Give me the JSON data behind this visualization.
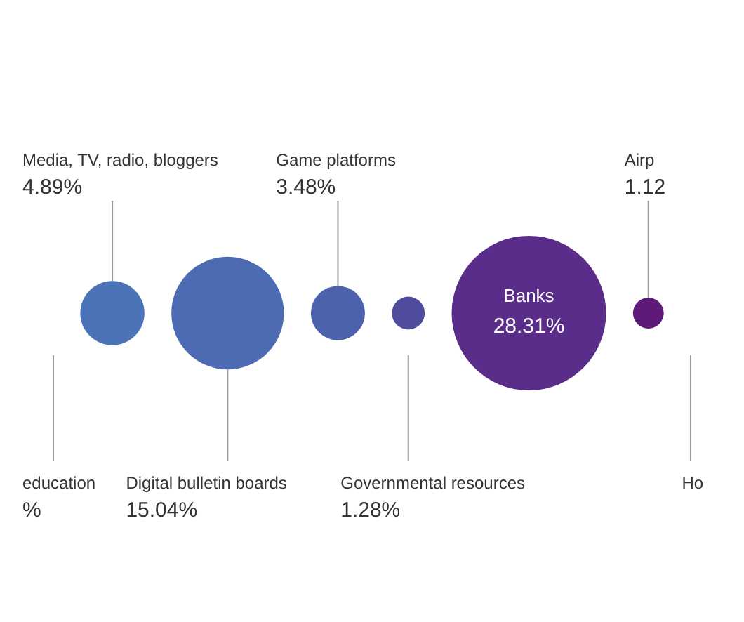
{
  "chart_data": {
    "type": "other",
    "categories": [
      "education",
      "Media, TV, radio, bloggers",
      "Digital bulletin boards",
      "Game platforms",
      "Governmental resources",
      "Banks",
      "Airp",
      "Ho"
    ],
    "values": [
      null,
      4.89,
      15.04,
      3.48,
      1.28,
      28.31,
      1.12,
      null
    ],
    "value_labels": [
      "%",
      "4.89%",
      "15.04%",
      "3.48%",
      "1.28%",
      "28.31%",
      "1.12",
      null
    ],
    "colors": [
      "#4d7dbf",
      "#4a74b7",
      "#4c6bb2",
      "#4d62ac",
      "#4f4c9e",
      "#5a2d8a",
      "#5e1a78",
      null
    ]
  }
}
